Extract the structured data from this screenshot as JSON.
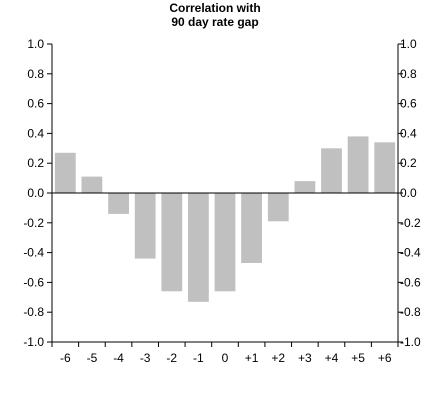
{
  "chart_data": {
    "type": "bar",
    "title_lines": [
      "Correlation with",
      "90 day rate gap"
    ],
    "categories": [
      "-6",
      "-5",
      "-4",
      "-3",
      "-2",
      "-1",
      "0",
      "+1",
      "+2",
      "+3",
      "+4",
      "+5",
      "+6"
    ],
    "values": [
      0.27,
      0.11,
      -0.14,
      -0.44,
      -0.66,
      -0.73,
      -0.66,
      -0.47,
      -0.19,
      0.08,
      0.3,
      0.38,
      0.34
    ],
    "ylim": [
      -1.0,
      1.0
    ],
    "y_ticks": [
      "1.0",
      "0.8",
      "0.6",
      "0.4",
      "0.2",
      "0.0",
      "-0.2",
      "-0.4",
      "-0.6",
      "-0.8",
      "-1.0"
    ],
    "y_tick_values": [
      1.0,
      0.8,
      0.6,
      0.4,
      0.2,
      0.0,
      -0.2,
      -0.4,
      -0.6,
      -0.8,
      -1.0
    ],
    "right_ticks": [
      "1.0",
      "0.8",
      "0.6",
      "0.4",
      "0.2",
      "0.0",
      "-0.2",
      "-0.4",
      "-0.6",
      "-0.8",
      "-1.0"
    ],
    "bar_color": "#c0c0c0",
    "grid": false
  }
}
